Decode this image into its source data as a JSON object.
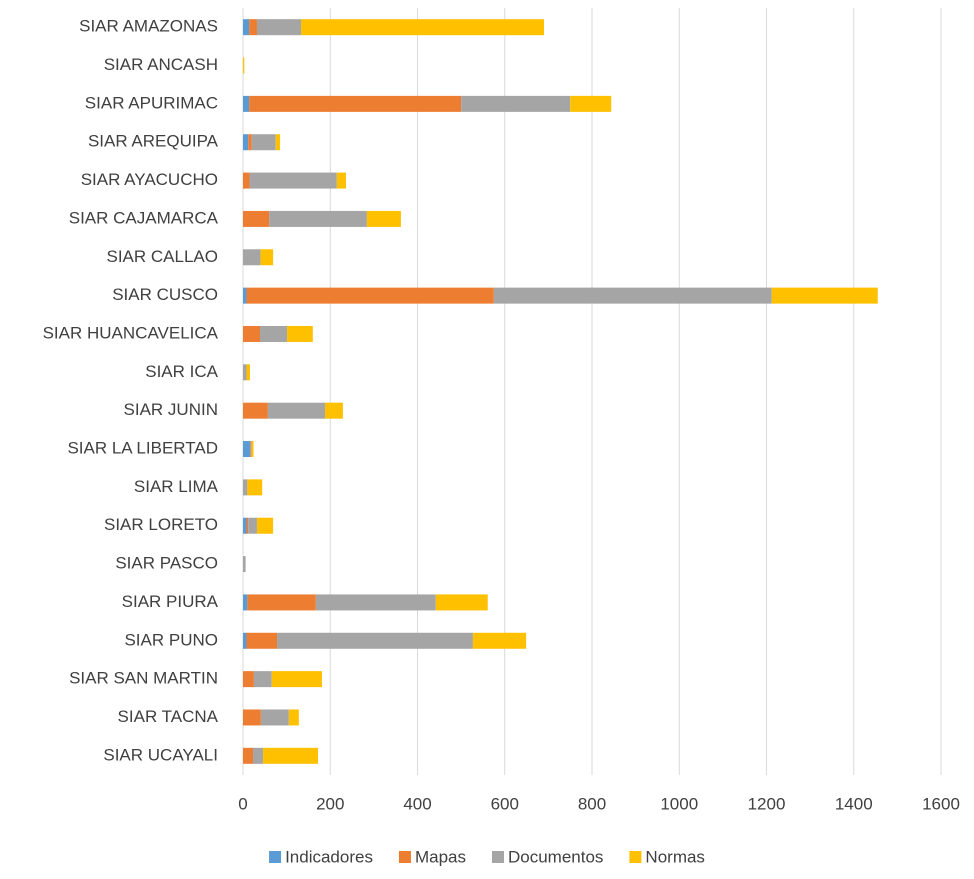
{
  "chart_data": {
    "type": "stacked_barh",
    "categories": [
      "SIAR AMAZONAS",
      "SIAR ANCASH",
      "SIAR APURIMAC",
      "SIAR AREQUIPA",
      "SIAR AYACUCHO",
      "SIAR CAJAMARCA",
      "SIAR CALLAO",
      "SIAR CUSCO",
      "SIAR HUANCAVELICA",
      "SIAR ICA",
      "SIAR JUNIN",
      "SIAR LA LIBERTAD",
      "SIAR LIMA",
      "SIAR LORETO",
      "SIAR PASCO",
      "SIAR PIURA",
      "SIAR PUNO",
      "SIAR SAN MARTIN",
      "SIAR TACNA",
      "SIAR UCAYALI"
    ],
    "series": [
      {
        "name": "Indicadores",
        "color": "#5b9bd5",
        "values": [
          14,
          0,
          14,
          12,
          0,
          0,
          0,
          8,
          0,
          0,
          0,
          16,
          0,
          8,
          0,
          10,
          8,
          0,
          0,
          0
        ]
      },
      {
        "name": "Mapas",
        "color": "#ed7d31",
        "values": [
          18,
          0,
          486,
          8,
          15,
          60,
          0,
          567,
          39,
          0,
          57,
          2,
          0,
          4,
          0,
          157,
          70,
          25,
          41,
          23
        ]
      },
      {
        "name": "Documentos",
        "color": "#a5a5a5",
        "values": [
          101,
          0,
          250,
          55,
          200,
          224,
          40,
          637,
          62,
          8,
          131,
          2,
          10,
          20,
          6,
          275,
          449,
          41,
          64,
          23
        ]
      },
      {
        "name": "Normas",
        "color": "#ffc000",
        "values": [
          557,
          3,
          94,
          10,
          21,
          78,
          29,
          243,
          59,
          8,
          41,
          4,
          34,
          37,
          0,
          119,
          122,
          115,
          23,
          126
        ]
      }
    ],
    "xlim": [
      0,
      1600
    ],
    "xticks": [
      0,
      200,
      400,
      600,
      800,
      1000,
      1200,
      1400,
      1600
    ],
    "grid": true,
    "legend": "bottom"
  }
}
